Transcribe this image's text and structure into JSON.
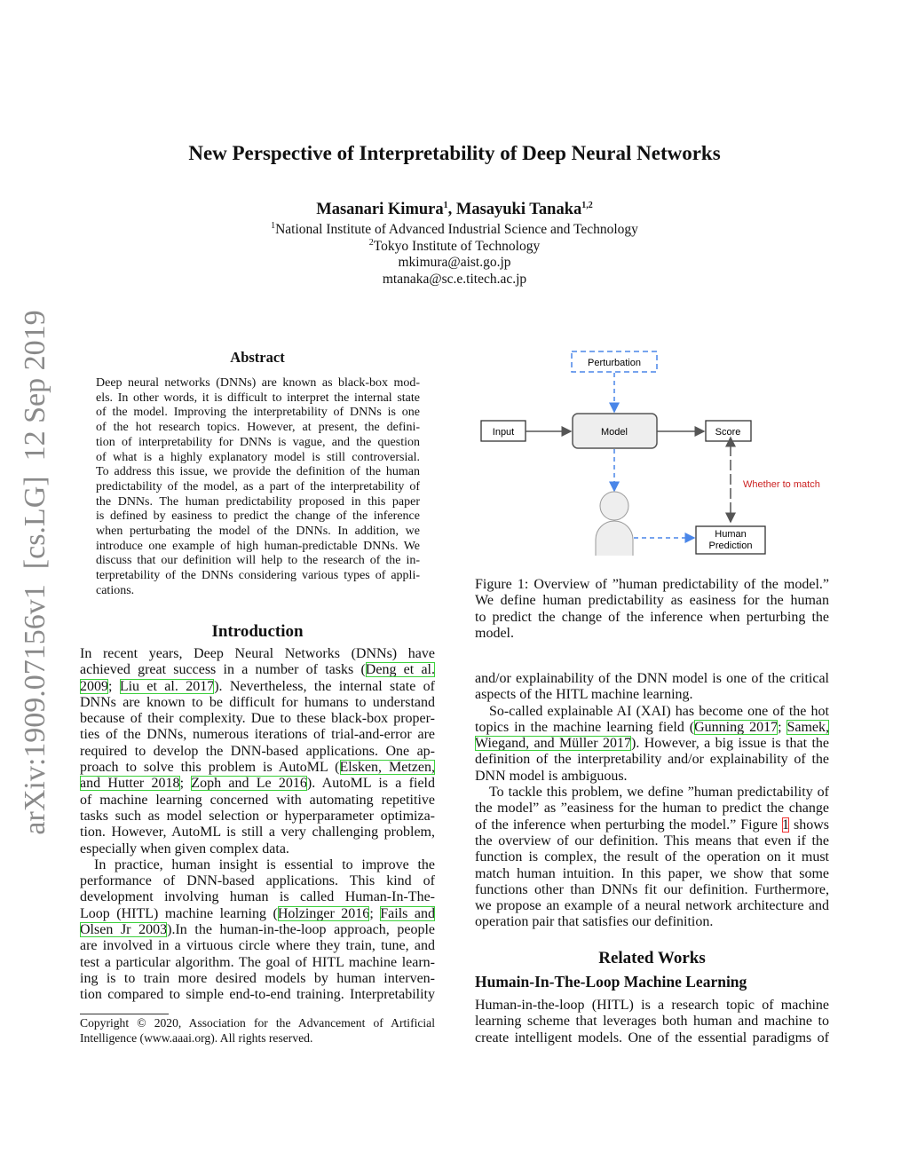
{
  "sidebar_stamp": "arXiv:1909.07156v1  [cs.LG]  12 Sep 2019",
  "title": "New Perspective of Interpretability of Deep Neural Networks",
  "authors": {
    "a1": "Masanari Kimura",
    "a1_sup": "1",
    "sep": ", ",
    "a2": "Masayuki Tanaka",
    "a2_sup": "1,2"
  },
  "affiliations": [
    {
      "sup": "1",
      "text": "National Institute of Advanced Industrial Science and Technology"
    },
    {
      "sup": "2",
      "text": "Tokyo Institute of Technology"
    },
    {
      "sup": "",
      "text": "mkimura@aist.go.jp"
    },
    {
      "sup": "",
      "text": "mtanaka@sc.e.titech.ac.jp"
    }
  ],
  "abstract": {
    "heading": "Abstract",
    "lines": [
      [
        "Deep neural networks (DNNs) are known as black-box mod-"
      ],
      [
        "els. In other words, it is difficult to interpret the internal state"
      ],
      [
        "of the model. Improving the interpretability of DNNs is one"
      ],
      [
        "of the hot research topics. However, at present, the defini-"
      ],
      [
        "tion of interpretability for DNNs is vague, and the question"
      ],
      [
        "of what is a highly explanatory model is still controversial."
      ],
      [
        "To address this issue, we provide the definition of the human"
      ],
      [
        "predictability of the model, as a part of the interpretability of"
      ],
      [
        "the DNNs. The human predictability proposed in this paper"
      ],
      [
        "is defined by easiness to predict the change of the inference"
      ],
      [
        "when perturbating the model of the DNNs. In addition, we"
      ],
      [
        "introduce one example of high human-predictable DNNs. We"
      ],
      [
        "discuss that our definition will help to the research of the in-"
      ],
      [
        "terpretability of the DNNs considering various types of appli-"
      ],
      [
        "cations."
      ]
    ]
  },
  "introduction": {
    "heading": "Introduction",
    "lines": [
      [
        "In recent years, Deep Neural Networks (DNNs) have"
      ],
      [
        "achieved great success in a number of tasks (",
        {
          "cite": "Deng et al."
        }
      ],
      [
        {
          "cite": "2009"
        },
        "; ",
        {
          "cite": "Liu et al. 2017"
        },
        "). Nevertheless, the internal state of"
      ],
      [
        "DNNs are known to be difficult for humans to understand"
      ],
      [
        "because of their complexity. Due to these black-box proper-"
      ],
      [
        "ties of the DNNs, numerous iterations of trial-and-error are"
      ],
      [
        "required to develop the DNN-based applications. One ap-"
      ],
      [
        "proach to solve this problem is AutoML (",
        {
          "cite": "Elsken, Metzen,"
        }
      ],
      [
        {
          "cite": "and Hutter 2018"
        },
        "; ",
        {
          "cite": "Zoph and Le 2016"
        },
        "). AutoML is a field"
      ],
      [
        "of machine learning concerned with automating repetitive"
      ],
      [
        "tasks such as model selection or hyperparameter optimiza-"
      ],
      [
        "tion. However, AutoML is still a very challenging problem,"
      ],
      [
        "especially when given complex data."
      ],
      [
        "In practice, human insight is essential to improve the"
      ],
      [
        "performance of DNN-based applications. This kind of"
      ],
      [
        "development involving human is called Human-In-The-"
      ],
      [
        "Loop (HITL) machine learning (",
        {
          "cite": "Holzinger 2016"
        },
        "; ",
        {
          "cite": "Fails and"
        }
      ],
      [
        {
          "cite": "Olsen Jr 2003"
        },
        ").In the human-in-the-loop approach, people"
      ],
      [
        "are involved in a virtuous circle where they train, tune, and"
      ],
      [
        "test a particular algorithm. The goal of HITL machine learn-"
      ],
      [
        "ing is to train more desired models by human interven-"
      ],
      [
        "tion compared to simple end-to-end training. Interpretability"
      ]
    ]
  },
  "footnote": [
    "Copyright © 2020, Association for the Advancement of Artificial",
    "Intelligence (www.aaai.org). All rights reserved."
  ],
  "figure": {
    "labels": {
      "perturbation": "Perturbation",
      "input": "Input",
      "model": "Model",
      "score": "Score",
      "match": "Whether to match",
      "human1": "Human",
      "human2": "Prediction"
    },
    "colors": {
      "blue": "#4a86e8",
      "red": "#cc2222",
      "gray": "#555555",
      "fill": "#eeeeee"
    },
    "caption": [
      [
        "Figure 1: Overview of ”human predictability of the model.”"
      ],
      [
        "We define human predictability as easiness for the human"
      ],
      [
        "to predict the change of the inference when perturbing the"
      ],
      [
        "model."
      ]
    ]
  },
  "right_body": [
    [
      "and/or explainability of the DNN model is one of the critical"
    ],
    [
      "aspects of the HITL machine learning."
    ],
    [
      "So-called explainable AI (XAI) has become one of the hot"
    ],
    [
      "topics in the machine learning field (",
      {
        "cite": "Gunning 2017"
      },
      "; ",
      {
        "cite": "Samek,"
      }
    ],
    [
      {
        "cite": "Wiegand, and Müller 2017"
      },
      "). However, a big issue is that the"
    ],
    [
      "definition of the interpretability and/or explainability of the"
    ],
    [
      "DNN model is ambiguous."
    ],
    [
      "To tackle this problem, we define ”human predictability of"
    ],
    [
      "the model” as ”easiness for the human to predict the change"
    ],
    [
      "of the inference when perturbing the model.” Figure ",
      {
        "ref": "1"
      },
      " shows"
    ],
    [
      "the overview of our definition. This means that even if the"
    ],
    [
      "function is complex, the result of the operation on it must"
    ],
    [
      "match human intuition. In this paper, we show that some"
    ],
    [
      "functions other than DNNs fit our definition. Furthermore,"
    ],
    [
      "we propose an example of a neural network architecture and"
    ],
    [
      "operation pair that satisfies our definition."
    ]
  ],
  "related": {
    "heading": "Related Works",
    "subheading": "Humain-In-The-Loop Machine Learning",
    "lines": [
      [
        "Human-in-the-loop (HITL) is a research topic of machine"
      ],
      [
        "learning scheme that leverages both human and machine to"
      ],
      [
        "create intelligent models. One of the essential paradigms of"
      ]
    ]
  }
}
